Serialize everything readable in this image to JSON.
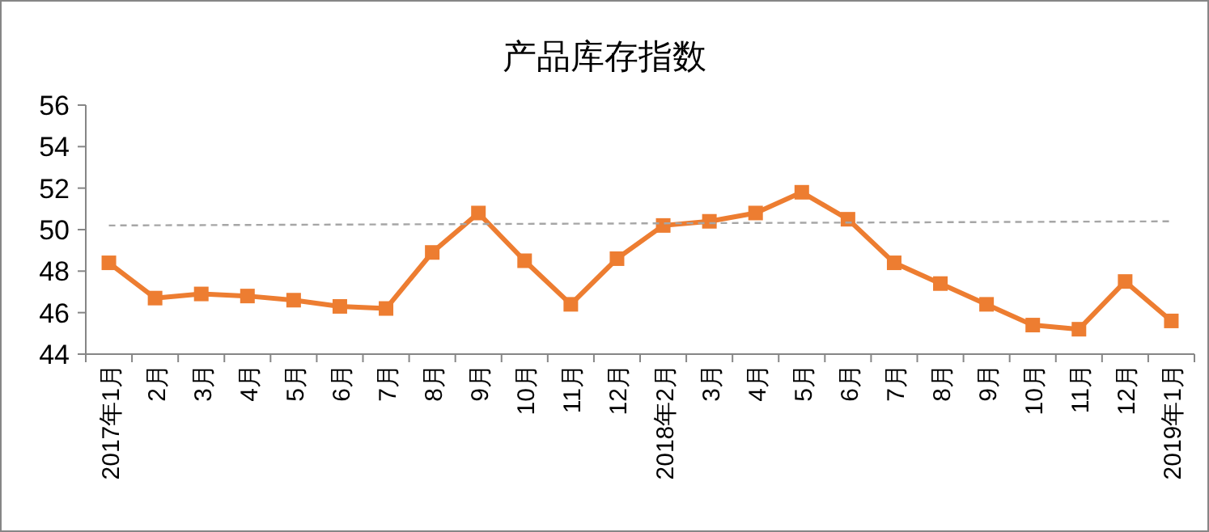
{
  "chart_data": {
    "type": "line",
    "title": "产品库存指数",
    "categories": [
      "2017年1月",
      "2月",
      "3月",
      "4月",
      "5月",
      "6月",
      "7月",
      "8月",
      "9月",
      "10月",
      "11月",
      "12月",
      "2018年2月",
      "3月",
      "4月",
      "5月",
      "6月",
      "7月",
      "8月",
      "9月",
      "10月",
      "11月",
      "12月",
      "2019年1月"
    ],
    "ylim": [
      44,
      56
    ],
    "yticks": [
      44,
      46,
      48,
      50,
      52,
      54,
      56
    ],
    "grid": false,
    "marker": "square",
    "line_style": "solid",
    "series": [
      {
        "color": "#ed7d31",
        "values": [
          48.4,
          46.7,
          46.9,
          46.8,
          46.6,
          46.3,
          46.2,
          48.9,
          50.8,
          48.5,
          46.4,
          48.6,
          50.2,
          50.4,
          50.8,
          51.8,
          50.5,
          48.4,
          47.4,
          46.4,
          45.4,
          45.2,
          47.5,
          45.6
        ]
      },
      {
        "type": "line",
        "color": "#a6a6a6",
        "line_style": "dashed",
        "marker": "none",
        "x": [
          "2017年1月",
          "2019年1月"
        ],
        "values": [
          50.2,
          50.4
        ]
      }
    ]
  }
}
